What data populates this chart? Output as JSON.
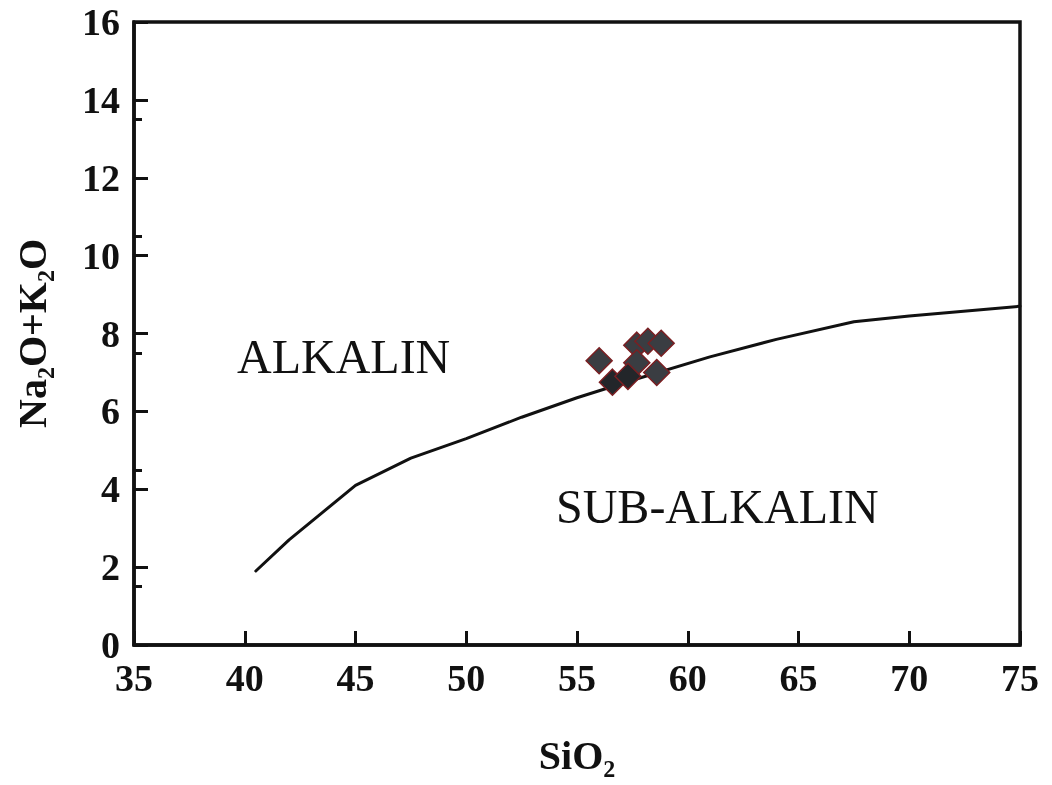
{
  "chart_data": {
    "type": "scatter",
    "xlabel": "SiO₂",
    "ylabel": "Na₂O+K₂O",
    "xlim": [
      35,
      75
    ],
    "ylim": [
      0,
      16
    ],
    "xticks": [
      35,
      40,
      45,
      50,
      55,
      60,
      65,
      70,
      75
    ],
    "yticks": [
      0,
      2,
      4,
      6,
      8,
      10,
      12,
      14,
      16
    ],
    "grid": false,
    "marker": "diamond",
    "annotations": [
      "ALKALIN",
      "SUB-ALKALIN"
    ],
    "series": [
      {
        "type": "line",
        "color": "#111111",
        "line_style": "solid",
        "marker": "none",
        "x": [
          40.5,
          42,
          43.5,
          45,
          47.5,
          50,
          52.5,
          55,
          57.5,
          61,
          64,
          67.5,
          70,
          75
        ],
        "values": [
          1.9,
          2.7,
          3.4,
          4.1,
          4.8,
          5.3,
          5.85,
          6.35,
          6.8,
          7.4,
          7.85,
          8.3,
          8.45,
          8.7
        ]
      },
      {
        "color": "#3a3d42",
        "x": [
          56.0,
          57.7,
          58.2,
          58.8,
          57.7,
          58.6,
          56.6,
          57.3
        ],
        "values": [
          7.3,
          7.7,
          7.8,
          7.75,
          7.25,
          7.0,
          6.75,
          6.9
        ],
        "colors": [
          "#3a3d42",
          "#3a3d42",
          "#3a3d42",
          "#3a3d42",
          "#3a3d42",
          "#3a3d42",
          "#23262a",
          "#23262a"
        ]
      }
    ]
  }
}
